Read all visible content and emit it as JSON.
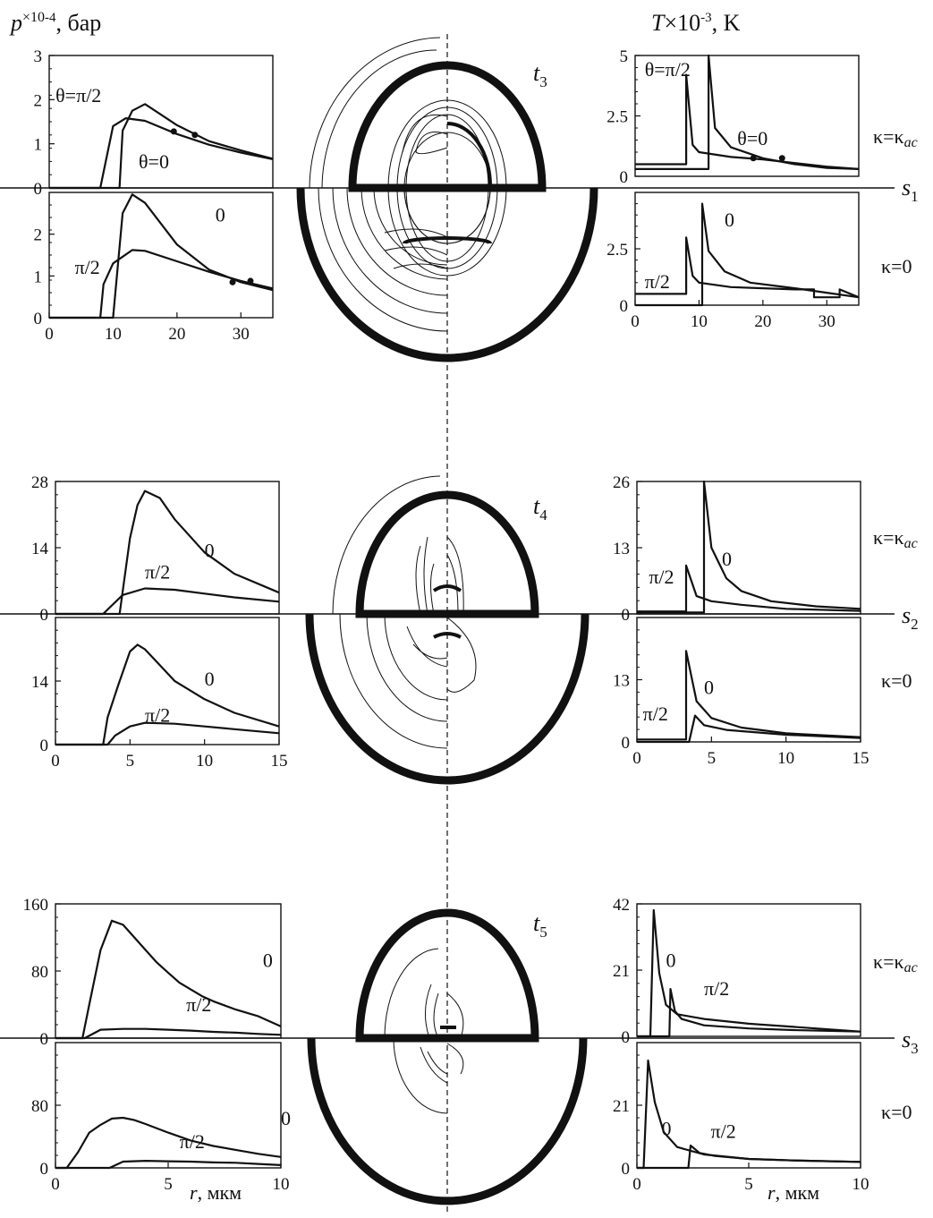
{
  "figure": {
    "p_unit": "p ×10^-4, бар",
    "T_unit": "T×10^-3, K",
    "r_unit": "r,  мкм",
    "kappa_ac": "κ=κac",
    "kappa_zero": "κ=0",
    "axis_color": "#111111"
  },
  "chart_data": [
    {
      "id": "pL1",
      "type": "line",
      "ylim": [
        0,
        3
      ],
      "xlim": [
        0,
        35
      ],
      "yticks": [
        "0",
        "1",
        "2",
        "3"
      ],
      "series": [
        {
          "name": "θ=π/2",
          "x": [
            0,
            8,
            10,
            12,
            15,
            20,
            25,
            30,
            35
          ],
          "y": [
            0,
            0,
            1.4,
            1.58,
            1.52,
            1.22,
            0.98,
            0.8,
            0.65
          ]
        },
        {
          "name": "θ=0",
          "x": [
            0,
            11,
            11.5,
            13,
            15,
            20,
            25,
            30,
            35
          ],
          "y": [
            0,
            0,
            1.3,
            1.75,
            1.9,
            1.42,
            1.06,
            0.85,
            0.66
          ]
        }
      ]
    },
    {
      "id": "pL2",
      "type": "line",
      "ylim": [
        0,
        3
      ],
      "xlim": [
        0,
        35
      ],
      "yticks": [
        "0",
        "1",
        "2"
      ],
      "xticks": [
        "0",
        "10",
        "20",
        "30"
      ],
      "series": [
        {
          "name": "0",
          "x": [
            0,
            10,
            11.5,
            13,
            15,
            20,
            25,
            30,
            35
          ],
          "y": [
            0,
            0,
            2.5,
            2.95,
            2.75,
            1.75,
            1.15,
            0.85,
            0.66
          ]
        },
        {
          "name": "π/2",
          "x": [
            0,
            8,
            8.5,
            10,
            13,
            15,
            20,
            25,
            30,
            35
          ],
          "y": [
            0,
            0,
            0.8,
            1.3,
            1.62,
            1.6,
            1.35,
            1.1,
            0.88,
            0.7
          ]
        }
      ]
    },
    {
      "id": "TR1",
      "type": "line",
      "ylim": [
        0,
        5
      ],
      "xlim": [
        0,
        35
      ],
      "yticks": [
        "0",
        "2.5",
        "5"
      ],
      "series": [
        {
          "name": "θ=π/2",
          "x": [
            0,
            8,
            8,
            9,
            10,
            15,
            20,
            25,
            30,
            35
          ],
          "y": [
            0.5,
            0.5,
            4.2,
            1.3,
            1.0,
            0.8,
            0.7,
            0.55,
            0.4,
            0.3
          ]
        },
        {
          "name": "θ=0",
          "x": [
            0,
            11.5,
            11.5,
            12.5,
            15,
            20,
            25,
            30,
            35
          ],
          "y": [
            0.3,
            0.3,
            5,
            2.0,
            1.2,
            0.75,
            0.5,
            0.35,
            0.3
          ]
        }
      ]
    },
    {
      "id": "TR2",
      "type": "line",
      "ylim": [
        0,
        5
      ],
      "xlim": [
        0,
        35
      ],
      "yticks": [
        "0",
        "2.5"
      ],
      "xticks": [
        "0",
        "10",
        "20",
        "30"
      ],
      "series": [
        {
          "name": "π/2",
          "x": [
            0,
            8,
            8,
            9,
            10,
            15,
            20,
            25,
            28,
            28,
            32,
            32,
            35
          ],
          "y": [
            0.5,
            0.5,
            3.0,
            1.3,
            1.0,
            0.8,
            0.75,
            0.7,
            0.7,
            0.35,
            0.35,
            0.7,
            0.35
          ]
        },
        {
          "name": "0",
          "x": [
            0,
            10.5,
            10.5,
            11.5,
            14,
            18,
            25,
            30,
            35
          ],
          "y": [
            0,
            0,
            4.5,
            2.4,
            1.5,
            1.0,
            0.75,
            0.55,
            0.35
          ]
        }
      ]
    },
    {
      "id": "pL3",
      "type": "line",
      "ylim": [
        0,
        28
      ],
      "xlim": [
        0,
        15
      ],
      "yticks": [
        "0",
        "14",
        "28"
      ],
      "series": [
        {
          "name": "0",
          "x": [
            0,
            4.3,
            5,
            5.5,
            6,
            7,
            8,
            10,
            12,
            15
          ],
          "y": [
            0,
            0,
            16,
            23,
            26,
            24.5,
            20,
            13,
            8.5,
            4.5
          ]
        },
        {
          "name": "π/2",
          "x": [
            0,
            3.2,
            4.5,
            6,
            8,
            10,
            12,
            15
          ],
          "y": [
            0,
            0,
            4,
            5.4,
            5.1,
            4.3,
            3.5,
            2.6
          ]
        }
      ]
    },
    {
      "id": "pL4",
      "type": "line",
      "ylim": [
        0,
        28
      ],
      "xlim": [
        0,
        15
      ],
      "yticks": [
        "0",
        "14"
      ],
      "xticks": [
        "0",
        "5",
        "10",
        "15"
      ],
      "series": [
        {
          "name": "0",
          "x": [
            0,
            3.2,
            3.5,
            4.2,
            5,
            5.5,
            6,
            7,
            8,
            10,
            12,
            15
          ],
          "y": [
            0,
            0,
            6,
            13,
            20.5,
            22,
            21,
            17.5,
            14,
            10,
            7,
            4
          ]
        },
        {
          "name": "π/2",
          "x": [
            0,
            3.5,
            4,
            5,
            6,
            8,
            10,
            12,
            15
          ],
          "y": [
            0,
            0,
            2,
            4,
            4.8,
            4.6,
            4,
            3.4,
            2.5
          ]
        }
      ]
    },
    {
      "id": "TR3",
      "type": "line",
      "ylim": [
        0,
        26
      ],
      "xlim": [
        0,
        15
      ],
      "yticks": [
        "0",
        "13",
        "26"
      ],
      "series": [
        {
          "name": "π/2",
          "x": [
            0,
            3.3,
            3.3,
            4,
            5,
            7,
            10,
            15
          ],
          "y": [
            0.5,
            0.5,
            9.5,
            3.5,
            2.5,
            1.8,
            1.0,
            0.6
          ]
        },
        {
          "name": "0",
          "x": [
            0,
            4.5,
            4.5,
            5,
            6,
            7,
            9,
            12,
            15
          ],
          "y": [
            0.3,
            0.3,
            26,
            13,
            7,
            4.5,
            2.5,
            1.5,
            1.0
          ]
        }
      ]
    },
    {
      "id": "TR4",
      "type": "line",
      "ylim": [
        0,
        26
      ],
      "xlim": [
        0,
        15
      ],
      "yticks": [
        "0",
        "13"
      ],
      "xticks": [
        "0",
        "5",
        "10",
        "15"
      ],
      "series": [
        {
          "name": "0",
          "x": [
            0,
            3.3,
            3.3,
            4,
            5,
            7,
            10,
            15
          ],
          "y": [
            0.5,
            0.5,
            19,
            8.5,
            5,
            3,
            1.8,
            1.0
          ]
        },
        {
          "name": "π/2",
          "x": [
            0,
            3.5,
            3.9,
            4.5,
            6,
            10,
            15
          ],
          "y": [
            0,
            0,
            5.5,
            3.5,
            2.5,
            1.5,
            0.8
          ]
        }
      ]
    },
    {
      "id": "pL5",
      "type": "line",
      "ylim": [
        0,
        160
      ],
      "xlim": [
        0,
        10
      ],
      "yticks": [
        "0",
        "80",
        "160"
      ],
      "series": [
        {
          "name": "0",
          "x": [
            0,
            1.2,
            1.5,
            2,
            2.5,
            3,
            3.5,
            4,
            4.5,
            5,
            5.5,
            6,
            6.5,
            7,
            8,
            9,
            10
          ],
          "y": [
            0,
            0,
            40,
            105,
            140,
            135,
            120,
            105,
            90,
            78,
            66,
            58,
            50,
            44,
            34,
            26,
            14
          ]
        },
        {
          "name": "π/2",
          "x": [
            0,
            1.3,
            2,
            3,
            4,
            5,
            6,
            7,
            8,
            9,
            10
          ],
          "y": [
            0,
            0,
            10,
            11,
            11,
            10,
            9,
            7.5,
            6.5,
            5,
            4
          ]
        }
      ]
    },
    {
      "id": "pL6",
      "type": "line",
      "ylim": [
        0,
        160
      ],
      "xlim": [
        0,
        10
      ],
      "yticks": [
        "0",
        "80"
      ],
      "xticks": [
        "0",
        "5",
        "10"
      ],
      "series": [
        {
          "name": "0",
          "x": [
            0,
            0.5,
            1,
            1.5,
            2,
            2.5,
            3,
            3.5,
            4,
            5,
            6,
            7,
            8,
            9,
            10
          ],
          "y": [
            0,
            0,
            20,
            45,
            55,
            63,
            64,
            61,
            56,
            45,
            35,
            28,
            23,
            18,
            14
          ]
        },
        {
          "name": "π/2",
          "x": [
            0,
            2.4,
            3,
            4,
            5,
            6,
            7,
            8,
            9,
            10
          ],
          "y": [
            0,
            0,
            8,
            9,
            8.5,
            8,
            7,
            6.5,
            5,
            3.5
          ]
        }
      ]
    },
    {
      "id": "TR5",
      "type": "line",
      "ylim": [
        0,
        42
      ],
      "xlim": [
        0,
        10
      ],
      "yticks": [
        "0",
        "21",
        "42"
      ],
      "series": [
        {
          "name": "0",
          "x": [
            0,
            0.6,
            0.75,
            1.0,
            1.3,
            1.8,
            3,
            5,
            7,
            10
          ],
          "y": [
            0,
            0,
            40,
            20,
            10,
            7,
            5.5,
            4,
            3,
            1.5
          ]
        },
        {
          "name": "π/2",
          "x": [
            0,
            1.45,
            1.5,
            1.7,
            2,
            3,
            5,
            7,
            10
          ],
          "y": [
            0,
            0,
            15,
            8,
            5.5,
            3.5,
            2.5,
            2,
            1.5
          ]
        }
      ]
    },
    {
      "id": "TR6",
      "type": "line",
      "ylim": [
        0,
        42
      ],
      "xlim": [
        0,
        10
      ],
      "yticks": [
        "0",
        "21"
      ],
      "xticks": [
        "0",
        "5",
        "10"
      ],
      "series": [
        {
          "name": "0",
          "x": [
            0,
            0.3,
            0.5,
            0.8,
            1.2,
            1.8,
            3,
            5,
            7,
            10
          ],
          "y": [
            0,
            0,
            36,
            22,
            12,
            7,
            4.5,
            3,
            2.5,
            2
          ]
        },
        {
          "name": "π/2",
          "x": [
            0,
            2.3,
            2.4,
            2.8,
            3.5,
            5,
            7,
            10
          ],
          "y": [
            0,
            0,
            7.5,
            5,
            4,
            3,
            2.5,
            2
          ]
        }
      ]
    }
  ],
  "panel_labels": {
    "pL1": [
      {
        "t": "θ=π/2",
        "x": 1,
        "y": 1.95
      },
      {
        "t": "θ=0",
        "x": 14,
        "y": 0.45
      }
    ],
    "pL2": [
      {
        "t": "0",
        "x": 26,
        "y": 2.3
      },
      {
        "t": "π/2",
        "x": 4,
        "y": 1.05
      }
    ],
    "TR1": [
      {
        "t": "θ=π/2",
        "x": 1.5,
        "y": 4.15
      },
      {
        "t": "θ=0",
        "x": 16,
        "y": 1.3
      }
    ],
    "TR2": [
      {
        "t": "0",
        "x": 14,
        "y": 3.5
      },
      {
        "t": "π/2",
        "x": 1.5,
        "y": 0.75
      }
    ],
    "pL3": [
      {
        "t": "0",
        "x": 10,
        "y": 12
      },
      {
        "t": "π/2",
        "x": 6,
        "y": 7.5
      }
    ],
    "pL4": [
      {
        "t": "0",
        "x": 10,
        "y": 13
      },
      {
        "t": "π/2",
        "x": 6,
        "y": 5
      }
    ],
    "TR3": [
      {
        "t": "0",
        "x": 5.7,
        "y": 9.5
      },
      {
        "t": "π/2",
        "x": 0.8,
        "y": 6
      }
    ],
    "TR4": [
      {
        "t": "0",
        "x": 4.5,
        "y": 10
      },
      {
        "t": "π/2",
        "x": 0.4,
        "y": 4.5
      }
    ],
    "pL5": [
      {
        "t": "0",
        "x": 9.2,
        "y": 85
      },
      {
        "t": "π/2",
        "x": 5.8,
        "y": 32
      }
    ],
    "pL6": [
      {
        "t": "0",
        "x": 10,
        "y": 55
      },
      {
        "t": "π/2",
        "x": 5.5,
        "y": 25
      }
    ],
    "TR5": [
      {
        "t": "0",
        "x": 1.3,
        "y": 22
      },
      {
        "t": "π/2",
        "x": 3,
        "y": 13
      }
    ],
    "TR6": [
      {
        "t": "0",
        "x": 1.1,
        "y": 11
      },
      {
        "t": "π/2",
        "x": 3.3,
        "y": 10
      }
    ]
  },
  "markers": {
    "pL1": [
      {
        "x": 19.5,
        "y": 1.28
      },
      {
        "x": 22.8,
        "y": 1.2
      }
    ],
    "pL2": [
      {
        "x": 28.7,
        "y": 0.85
      },
      {
        "x": 31.5,
        "y": 0.88
      }
    ],
    "TR1": [
      {
        "x": 18.5,
        "y": 0.75
      },
      {
        "x": 23,
        "y": 0.75
      }
    ]
  },
  "row_labels": [
    {
      "time": "t",
      "time_sub": "3",
      "s": "s",
      "s_sub": "1"
    },
    {
      "time": "t",
      "time_sub": "4",
      "s": "s",
      "s_sub": "2"
    },
    {
      "time": "t",
      "time_sub": "5",
      "s": "s",
      "s_sub": "3"
    }
  ]
}
